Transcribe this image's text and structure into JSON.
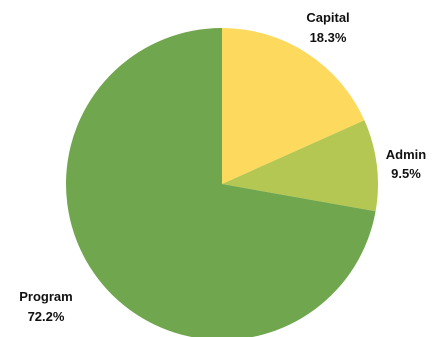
{
  "chart_data": {
    "type": "pie",
    "start": "12-o-clock",
    "direction": "clockwise",
    "slices": [
      {
        "label": "Capital",
        "value": 18.3,
        "value_label": "18.3%",
        "color": "#FDDA5D"
      },
      {
        "label": "Admin",
        "value": 9.5,
        "value_label": "9.5%",
        "color": "#B5C753"
      },
      {
        "label": "Program",
        "value": 72.2,
        "value_label": "72.2%",
        "color": "#70A64D"
      }
    ]
  }
}
